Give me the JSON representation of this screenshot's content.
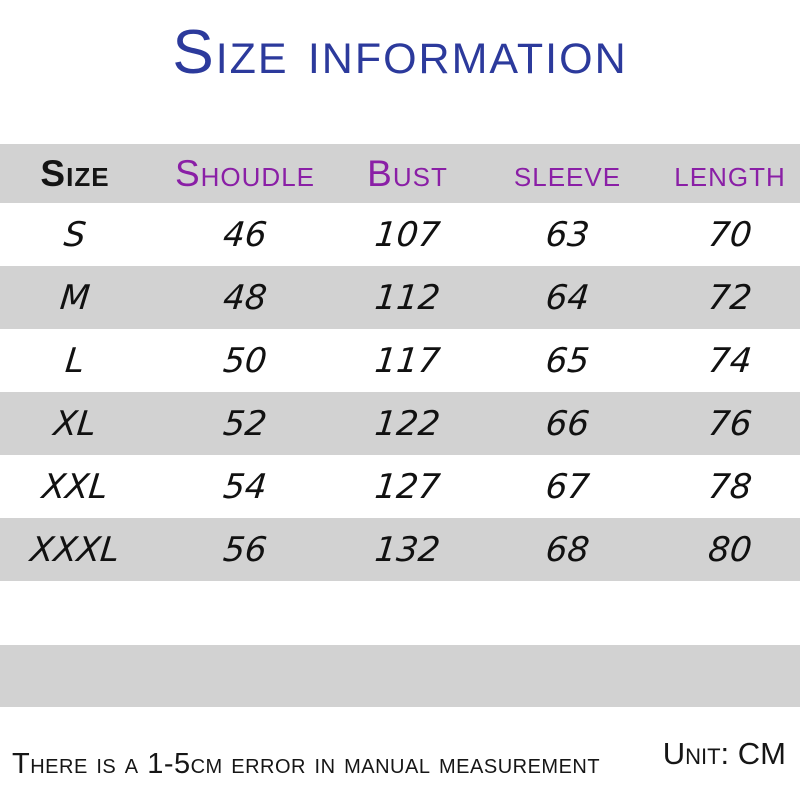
{
  "title": "Size information",
  "table": {
    "columns": [
      "Size",
      "Shoudle",
      "Bust",
      "sleeve",
      "length"
    ],
    "rows": [
      {
        "size": "S",
        "values": [
          "46",
          "107",
          "63",
          "70"
        ]
      },
      {
        "size": "M",
        "values": [
          "48",
          "112",
          "64",
          "72"
        ]
      },
      {
        "size": "L",
        "values": [
          "50",
          "117",
          "65",
          "74"
        ]
      },
      {
        "size": "XL",
        "values": [
          "52",
          "122",
          "66",
          "76"
        ]
      },
      {
        "size": "XXL",
        "values": [
          "54",
          "127",
          "67",
          "78"
        ]
      },
      {
        "size": "XXXL",
        "values": [
          "56",
          "132",
          "68",
          "80"
        ]
      }
    ]
  },
  "footer": {
    "note": "There is a 1-5cm error in manual measurement",
    "unit": "Unit: CM"
  },
  "colors": {
    "title_blue": "#2c3a9c",
    "header_purple": "#8a1fa6",
    "band_gray": "#d2d2d2",
    "text_black": "#141414"
  }
}
